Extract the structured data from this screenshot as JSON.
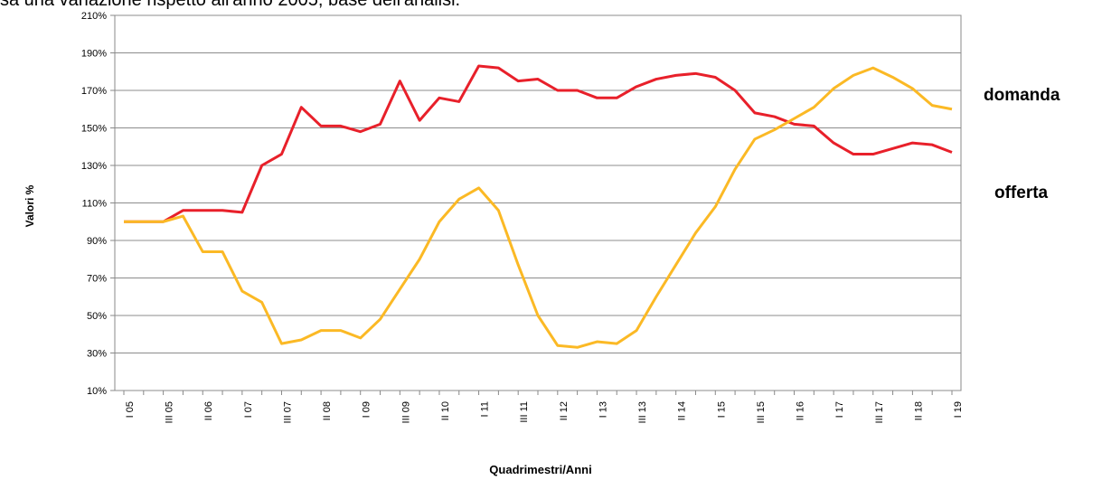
{
  "chart_data": {
    "type": "line",
    "subtitle": "sa una variazione rispetto all'anno 2005, base dell'analisi.",
    "y_label": "Valori %",
    "x_label": "Quadrimestri/Anni",
    "categories": [
      "I 05",
      null,
      "III 05",
      null,
      "II 06",
      null,
      "I 07",
      null,
      "III 07",
      null,
      "II 08",
      null,
      "I 09",
      null,
      "III 09",
      null,
      "II 10",
      null,
      "I 11",
      null,
      "III 11",
      null,
      "II 12",
      null,
      "I 13",
      null,
      "III 13",
      null,
      "II 14",
      null,
      "I 15",
      null,
      "III 15",
      null,
      "II 16",
      null,
      "I 17",
      null,
      "III 17",
      null,
      "II 18",
      null,
      "I 19"
    ],
    "series": [
      {
        "name": "domanda",
        "color": "#e8202a",
        "values": [
          100,
          100,
          100,
          106,
          106,
          106,
          105,
          130,
          136,
          161,
          151,
          151,
          148,
          152,
          175,
          154,
          166,
          164,
          183,
          182,
          175,
          176,
          170,
          170,
          166,
          166,
          172,
          176,
          178,
          179,
          177,
          170,
          158,
          156,
          152,
          151,
          142,
          136,
          136,
          139,
          142,
          141,
          137
        ]
      },
      {
        "name": "offerta",
        "color": "#fbb925",
        "values": [
          100,
          100,
          100,
          103,
          84,
          84,
          63,
          57,
          35,
          37,
          42,
          42,
          38,
          48,
          64,
          80,
          100,
          112,
          118,
          106,
          77,
          50,
          34,
          33,
          36,
          35,
          42,
          60,
          77,
          94,
          108,
          128,
          144,
          149,
          155,
          161,
          171,
          178,
          182,
          177,
          171,
          162,
          160
        ]
      }
    ],
    "ylim": [
      10,
      210
    ],
    "yticks": [
      {
        "value": 10,
        "label": "10%"
      },
      {
        "value": 30,
        "label": "30%"
      },
      {
        "value": 50,
        "label": "50%"
      },
      {
        "value": 70,
        "label": "70%"
      },
      {
        "value": 90,
        "label": "90%"
      },
      {
        "value": 110,
        "label": "110%"
      },
      {
        "value": 130,
        "label": "130%"
      },
      {
        "value": 150,
        "label": "150%"
      },
      {
        "value": 170,
        "label": "170%"
      },
      {
        "value": 190,
        "label": "190%"
      },
      {
        "value": 210,
        "label": "210%"
      }
    ],
    "grid": true
  }
}
